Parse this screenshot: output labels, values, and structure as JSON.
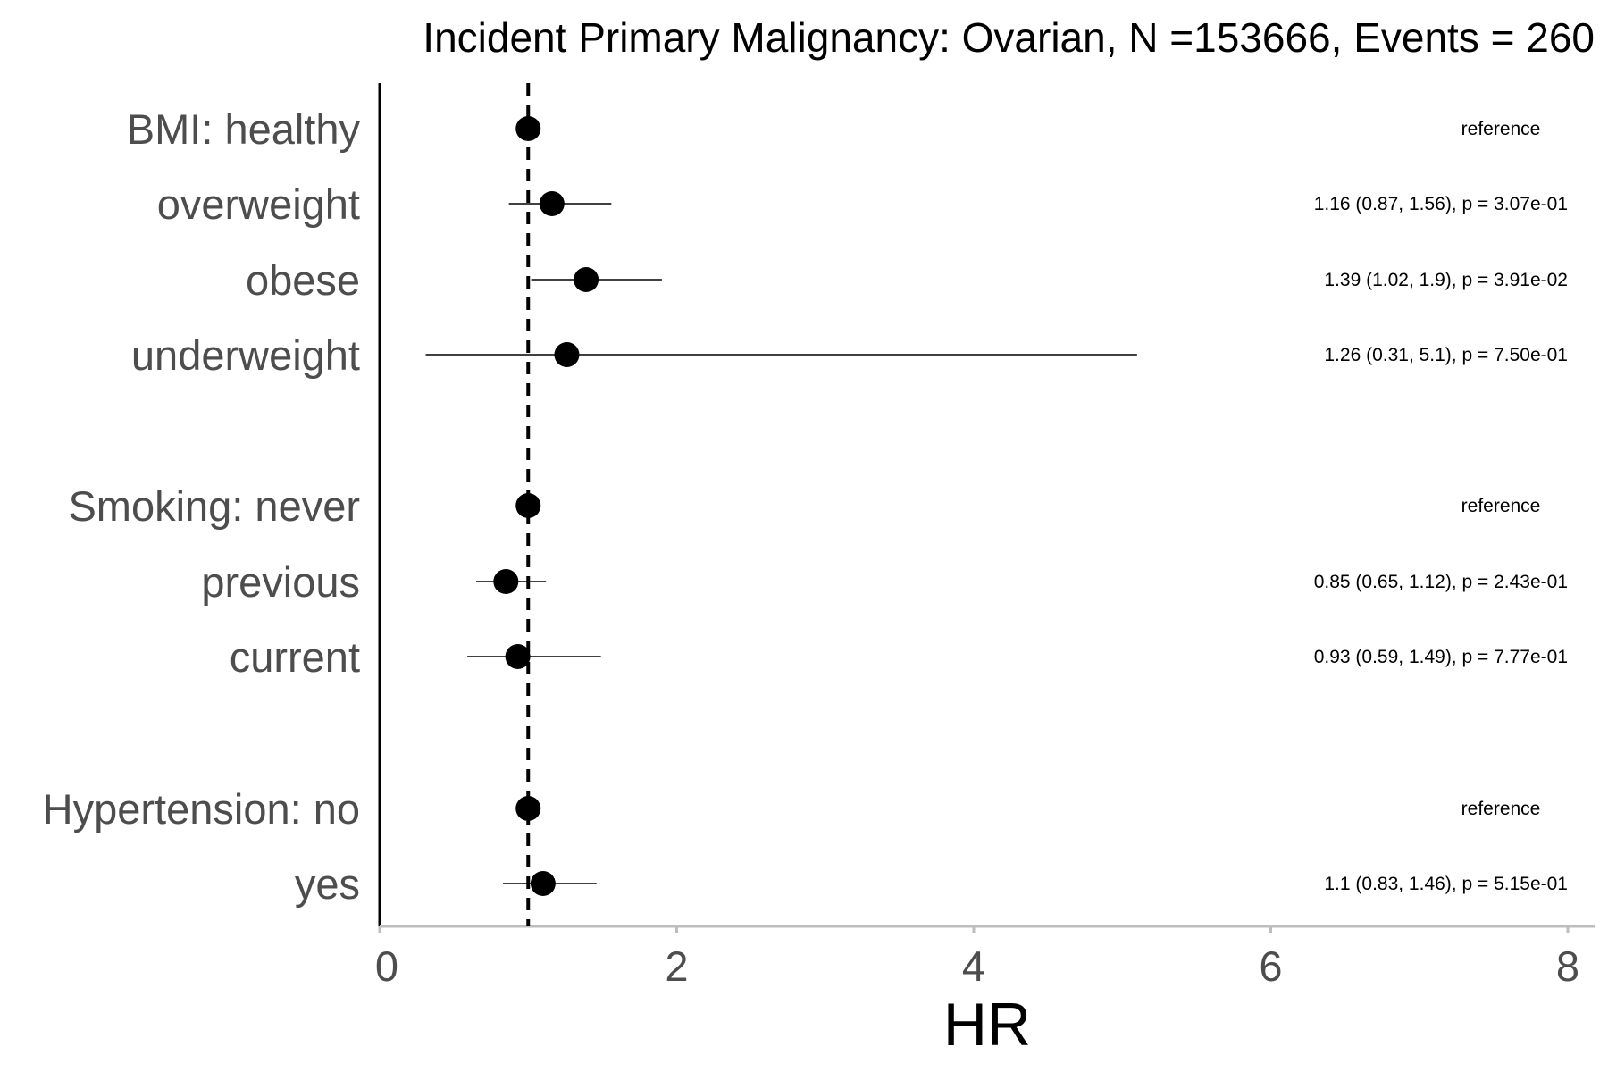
{
  "chart_data": {
    "type": "forest",
    "title": "Incident Primary Malignancy: Ovarian, N =153666, Events = 260",
    "xlabel": "HR",
    "xlim": [
      0,
      8
    ],
    "xticks": [
      "0",
      "2",
      "4",
      "6",
      "8"
    ],
    "reference_line": 1,
    "grid": false,
    "rows": [
      {
        "label": "BMI: healthy",
        "hr": 1.0,
        "lower": null,
        "upper": null,
        "annotation": "reference"
      },
      {
        "label": "overweight",
        "hr": 1.16,
        "lower": 0.87,
        "upper": 1.56,
        "annotation": "1.16 (0.87, 1.56), p = 3.07e-01"
      },
      {
        "label": "obese",
        "hr": 1.39,
        "lower": 1.02,
        "upper": 1.9,
        "annotation": "1.39 (1.02, 1.9), p = 3.91e-02"
      },
      {
        "label": "underweight",
        "hr": 1.26,
        "lower": 0.31,
        "upper": 5.1,
        "annotation": "1.26 (0.31, 5.1), p = 7.50e-01"
      },
      {
        "label": "Smoking: never",
        "hr": 1.0,
        "lower": null,
        "upper": null,
        "annotation": "reference"
      },
      {
        "label": "previous",
        "hr": 0.85,
        "lower": 0.65,
        "upper": 1.12,
        "annotation": "0.85 (0.65, 1.12), p = 2.43e-01"
      },
      {
        "label": "current",
        "hr": 0.93,
        "lower": 0.59,
        "upper": 1.49,
        "annotation": "0.93 (0.59, 1.49), p = 7.77e-01"
      },
      {
        "label": "Hypertension: no",
        "hr": 1.0,
        "lower": null,
        "upper": null,
        "annotation": "reference"
      },
      {
        "label": "yes",
        "hr": 1.1,
        "lower": 0.83,
        "upper": 1.46,
        "annotation": "1.1 (0.83, 1.46), p = 5.15e-01"
      }
    ]
  }
}
